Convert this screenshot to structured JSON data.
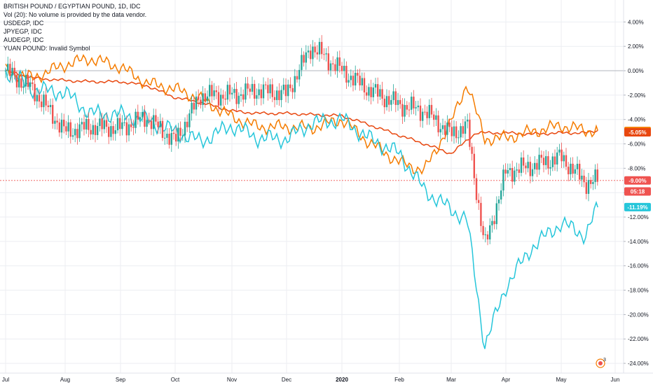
{
  "legend": {
    "title": "BRITISH POUND / EGYPTIAN POUND, 1D, IDC",
    "volume": "Vol (20): No volume is provided by the data vendor.",
    "usd": "USDEGP, IDC",
    "jpy": "JPYEGP, IDC",
    "aud": "AUDEGP, IDC",
    "yuan": "YUAN POUND: Invalid Symbol"
  },
  "icon": {
    "name": "tradingview-alert-icon",
    "badge": "3"
  },
  "colors": {
    "up": "#26a69a",
    "down": "#ef5350",
    "usd": "#e8470f",
    "jpy": "#f57c00",
    "aud": "#26c6da",
    "grid": "#eceef2",
    "zero": "#b2b5be"
  },
  "chart_data": {
    "type": "line",
    "title": "BRITISH POUND / EGYPTIAN POUND, 1D, IDC",
    "xlabel": "",
    "ylabel": "",
    "x_ticks": [
      "Jul",
      "Aug",
      "Sep",
      "Oct",
      "Nov",
      "Dec",
      "2020",
      "Feb",
      "Mar",
      "Apr",
      "May",
      "Jun"
    ],
    "y_ticks": [
      "4.00%",
      "2.00%",
      "0.00%",
      "-2.00%",
      "-4.00%",
      "-6.00%",
      "-8.00%",
      "-10.00%",
      "-12.00%",
      "-14.00%",
      "-16.00%",
      "-18.00%",
      "-20.00%",
      "-22.00%",
      "-24.00%"
    ],
    "ylim": [
      -24.8,
      5.8
    ],
    "grid": true,
    "price_tags": [
      {
        "label": "-4.94%",
        "value": -4.94,
        "color": "#f57c00"
      },
      {
        "label": "-5.05%",
        "value": -5.05,
        "color": "#e8470f"
      },
      {
        "label": "-9.00%",
        "value": -9.0,
        "color": "#ef5350"
      },
      {
        "label": "05:18",
        "value": -9.9,
        "color": "#ef5350"
      },
      {
        "label": "-11.19%",
        "value": -11.19,
        "color": "#26c6da"
      }
    ],
    "series": [
      {
        "name": "USDEGP, IDC",
        "kind": "line",
        "color": "#e8470f",
        "x": [
          "Jul 1",
          "Jul 15",
          "Aug 1",
          "Aug 15",
          "Sep 1",
          "Sep 15",
          "Oct 1",
          "Oct 15",
          "Nov 1",
          "Nov 15",
          "Dec 1",
          "Dec 15",
          "Jan 1",
          "Jan 15",
          "Feb 1",
          "Feb 15",
          "Mar 1",
          "Mar 15",
          "Apr 1",
          "Apr 15",
          "May 1",
          "May 15",
          "May 22"
        ],
        "values": [
          0.0,
          -0.6,
          -0.8,
          -0.9,
          -0.9,
          -1.2,
          -2.2,
          -2.6,
          -3.3,
          -3.5,
          -3.5,
          -3.6,
          -3.7,
          -4.4,
          -5.3,
          -6.0,
          -6.8,
          -5.1,
          -5.1,
          -5.2,
          -5.1,
          -5.1,
          -4.9
        ]
      },
      {
        "name": "JPYEGP, IDC",
        "kind": "line",
        "color": "#f57c00",
        "x": [
          "Jul 1",
          "Jul 15",
          "Aug 1",
          "Aug 15",
          "Sep 1",
          "Sep 15",
          "Oct 1",
          "Oct 15",
          "Nov 1",
          "Nov 15",
          "Dec 1",
          "Dec 15",
          "Jan 1",
          "Jan 15",
          "Feb 1",
          "Feb 15",
          "Mar 1",
          "Mar 10",
          "Mar 20",
          "Apr 1",
          "Apr 15",
          "May 1",
          "May 15",
          "May 22"
        ],
        "values": [
          0.0,
          -0.6,
          0.5,
          1.0,
          0.3,
          -1.0,
          -1.5,
          -2.3,
          -3.8,
          -4.6,
          -4.6,
          -4.7,
          -4.0,
          -5.8,
          -7.5,
          -8.2,
          -4.2,
          -1.0,
          -5.6,
          -5.5,
          -5.0,
          -4.5,
          -4.9,
          -4.9
        ]
      },
      {
        "name": "AUDEGP, IDC",
        "kind": "line",
        "color": "#26c6da",
        "x": [
          "Jul 1",
          "Jul 15",
          "Aug 1",
          "Aug 15",
          "Sep 1",
          "Sep 15",
          "Oct 1",
          "Oct 15",
          "Nov 1",
          "Nov 15",
          "Dec 1",
          "Dec 15",
          "Jan 1",
          "Jan 15",
          "Feb 1",
          "Feb 15",
          "Mar 1",
          "Mar 10",
          "Mar 20",
          "Apr 1",
          "Apr 15",
          "May 1",
          "May 15",
          "May 22"
        ],
        "values": [
          0.0,
          -1.5,
          -1.8,
          -3.5,
          -3.6,
          -4.0,
          -5.0,
          -5.8,
          -4.5,
          -5.5,
          -5.6,
          -4.3,
          -4.0,
          -5.5,
          -6.8,
          -9.8,
          -11.4,
          -12.2,
          -22.6,
          -17.7,
          -14.5,
          -12.5,
          -13.5,
          -11.2
        ]
      },
      {
        "name": "BRITISH POUND / EGYPTIAN POUND, 1D, IDC",
        "kind": "candles",
        "x": [
          "Jul 1",
          "Jul 15",
          "Aug 1",
          "Aug 15",
          "Sep 1",
          "Sep 15",
          "Oct 1",
          "Oct 15",
          "Nov 1",
          "Nov 15",
          "Dec 1",
          "Dec 15",
          "Jan 1",
          "Jan 15",
          "Feb 1",
          "Feb 15",
          "Mar 1",
          "Mar 10",
          "Mar 20",
          "Apr 1",
          "Apr 15",
          "May 1",
          "May 15",
          "May 22"
        ],
        "values": [
          0.0,
          -1.5,
          -5.0,
          -4.6,
          -4.7,
          -3.8,
          -5.8,
          -2.0,
          -2.0,
          -1.6,
          -1.9,
          2.0,
          0.0,
          -1.5,
          -2.8,
          -3.3,
          -5.2,
          -4.5,
          -14.5,
          -8.3,
          -7.8,
          -7.1,
          -9.2,
          -9.0
        ]
      }
    ]
  }
}
